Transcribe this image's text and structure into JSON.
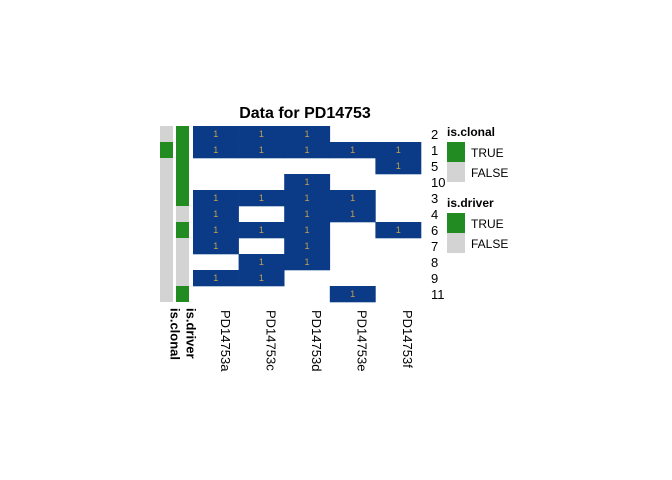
{
  "chart_data": {
    "type": "heatmap",
    "title": "Data for PD14753",
    "columns": [
      "PD14753a",
      "PD14753c",
      "PD14753d",
      "PD14753e",
      "PD14753f"
    ],
    "rows": [
      "2",
      "1",
      "5",
      "10",
      "3",
      "4",
      "6",
      "7",
      "8",
      "9",
      "11"
    ],
    "cell_label": "1",
    "values": [
      [
        1,
        1,
        1,
        0,
        0
      ],
      [
        1,
        1,
        1,
        1,
        1
      ],
      [
        0,
        0,
        0,
        0,
        1
      ],
      [
        0,
        0,
        1,
        0,
        0
      ],
      [
        1,
        1,
        1,
        1,
        0
      ],
      [
        1,
        0,
        1,
        1,
        0
      ],
      [
        1,
        1,
        1,
        0,
        1
      ],
      [
        1,
        0,
        1,
        0,
        0
      ],
      [
        0,
        1,
        1,
        0,
        0
      ],
      [
        1,
        1,
        0,
        0,
        0
      ],
      [
        0,
        0,
        0,
        1,
        0
      ]
    ],
    "annotations": [
      {
        "name": "is.clonal",
        "values": [
          false,
          true,
          false,
          false,
          false,
          false,
          false,
          false,
          false,
          false,
          false
        ]
      },
      {
        "name": "is.driver",
        "values": [
          true,
          true,
          true,
          true,
          true,
          false,
          true,
          false,
          false,
          false,
          true
        ]
      }
    ],
    "legends": [
      {
        "title": "is.clonal",
        "entries": [
          {
            "label": "TRUE",
            "color": "#228B22"
          },
          {
            "label": "FALSE",
            "color": "#D3D3D3"
          }
        ]
      },
      {
        "title": "is.driver",
        "entries": [
          {
            "label": "TRUE",
            "color": "#228B22"
          },
          {
            "label": "FALSE",
            "color": "#D3D3D3"
          }
        ]
      }
    ],
    "colors": {
      "present": "#0B3A86",
      "absent": "#FFFFFF",
      "label": "#C8A24A",
      "true": "#228B22",
      "false": "#D3D3D3"
    },
    "legend_position": "right"
  }
}
